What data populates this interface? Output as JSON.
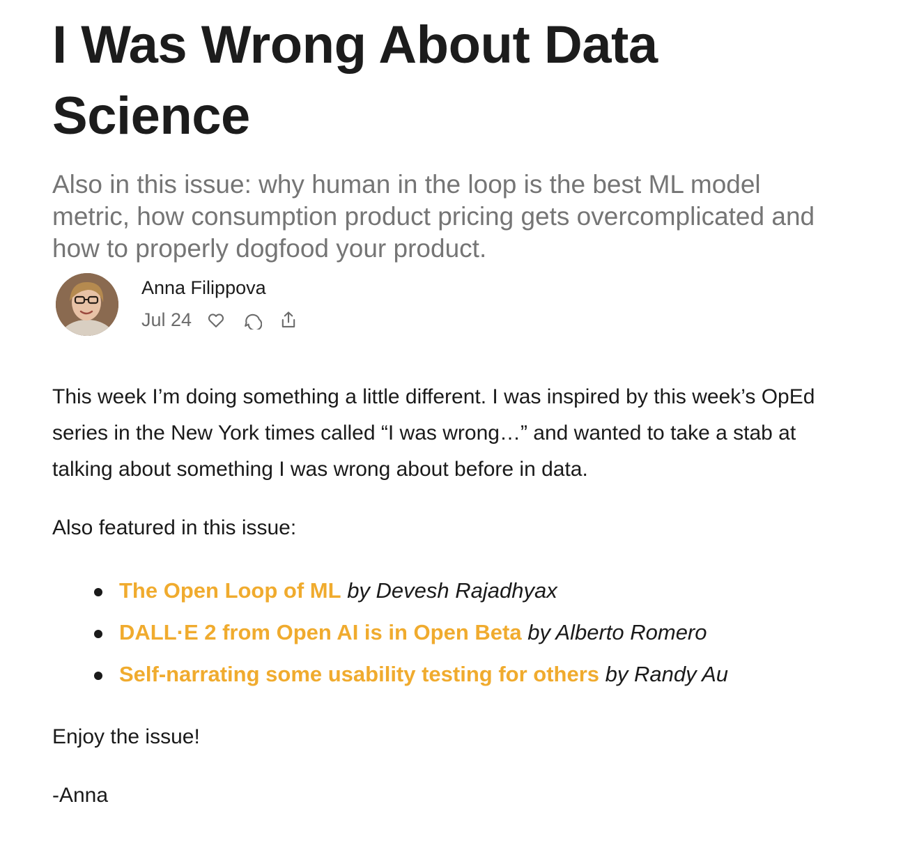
{
  "post": {
    "title": "I Was Wrong About Data Science",
    "subtitle": "Also in this issue: why human in the loop is the best ML model metric, how consumption product pricing gets overcomplicated and how to properly dogfood your product."
  },
  "byline": {
    "author": "Anna Filippova",
    "date": "Jul 24",
    "icons": [
      "heart-icon",
      "comment-icon",
      "share-icon"
    ]
  },
  "body": {
    "intro": "This week I’m doing something a little different. I was inspired by this week’s OpEd series in the New York times called “I was wrong…” and wanted to take a stab at talking about something I was wrong about before in data.",
    "featured_heading": "Also featured in this issue:",
    "featured": [
      {
        "title": "The Open Loop of ML",
        "by": "by Devesh Rajadhyax"
      },
      {
        "title": "DALL·E 2 from Open AI is in Open Beta",
        "by": "by Alberto Romero"
      },
      {
        "title": "Self-narrating some usability testing for others",
        "by": "by Randy Au"
      }
    ],
    "closing": "Enjoy the issue!",
    "signoff": "-Anna"
  },
  "colors": {
    "link": "#f0ab2e",
    "subtitle": "#757575",
    "meta": "#6b6b6b"
  }
}
